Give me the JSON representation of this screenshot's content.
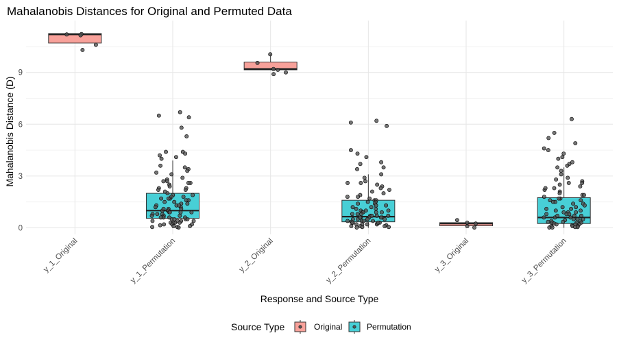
{
  "chart_data": {
    "type": "boxplot",
    "title": "Mahalanobis Distances for Original and Permuted Data",
    "xlabel": "Response and Source Type",
    "ylabel": "Mahalanobis Distance (D)",
    "ylim": [
      -0.5,
      11.8
    ],
    "yticks": [
      0,
      3,
      6,
      9
    ],
    "grid": true,
    "legend": {
      "title": "Source Type",
      "placement": "bottom",
      "entries": [
        {
          "label": "Original",
          "color": "#f8a19a"
        },
        {
          "label": "Permutation",
          "color": "#48cfd6"
        }
      ]
    },
    "categories": [
      {
        "label": "y_1_Original",
        "source": "Original",
        "box": {
          "q1": 10.7,
          "median": 11.2,
          "q3": 11.25,
          "whisker_low": 10.7,
          "whisker_high": 11.25
        },
        "points": [
          11.22,
          11.2,
          11.15,
          10.6,
          10.3
        ]
      },
      {
        "label": "y_1_Permutation",
        "source": "Permutation",
        "box": {
          "q1": 0.55,
          "median": 1.0,
          "q3": 2.0,
          "whisker_low": 0.0,
          "whisker_high": 3.9
        },
        "points": [
          6.7,
          6.5,
          6.4,
          5.8,
          5.3,
          4.4,
          4.4,
          4.3,
          4.2,
          4.1,
          4.0,
          3.6,
          3.5,
          3.4,
          3.3,
          3.2,
          3.1,
          2.9,
          2.8,
          2.7,
          2.7,
          2.6,
          2.6,
          2.5,
          2.4,
          2.3,
          2.3,
          2.2,
          2.1,
          2.0,
          1.9,
          1.9,
          1.8,
          1.8,
          1.7,
          1.7,
          1.6,
          1.6,
          1.5,
          1.5,
          1.4,
          1.4,
          1.3,
          1.3,
          1.2,
          1.2,
          1.1,
          1.1,
          1.0,
          1.0,
          1.0,
          0.9,
          0.9,
          0.9,
          0.8,
          0.8,
          0.8,
          0.7,
          0.7,
          0.7,
          0.6,
          0.6,
          0.6,
          0.5,
          0.5,
          0.5,
          0.5,
          0.4,
          0.4,
          0.4,
          0.3,
          0.3,
          0.3,
          0.3,
          0.2,
          0.2,
          0.2,
          0.15,
          0.1,
          0.1,
          0.05,
          0.05,
          0.02,
          1.3,
          1.7,
          2.2,
          0.9,
          1.1,
          0.6,
          0.4
        ]
      },
      {
        "label": "y_2_Original",
        "source": "Original",
        "box": {
          "q1": 9.15,
          "median": 9.2,
          "q3": 9.6,
          "whisker_low": 9.15,
          "whisker_high": 10.05
        },
        "points": [
          10.05,
          9.55,
          9.2,
          9.15,
          9.0,
          8.9
        ]
      },
      {
        "label": "y_2_Permutation",
        "source": "Permutation",
        "box": {
          "q1": 0.35,
          "median": 0.65,
          "q3": 1.6,
          "whisker_low": 0.0,
          "whisker_high": 3.1
        },
        "points": [
          6.2,
          6.1,
          5.9,
          4.5,
          4.3,
          4.1,
          3.8,
          3.7,
          3.5,
          3.4,
          3.1,
          2.9,
          2.7,
          2.6,
          2.6,
          2.5,
          2.4,
          2.3,
          2.2,
          2.1,
          2.0,
          1.9,
          1.8,
          1.8,
          1.7,
          1.6,
          1.6,
          1.5,
          1.5,
          1.4,
          1.3,
          1.3,
          1.2,
          1.2,
          1.1,
          1.1,
          1.0,
          1.0,
          0.9,
          0.9,
          0.9,
          0.8,
          0.8,
          0.8,
          0.7,
          0.7,
          0.7,
          0.6,
          0.6,
          0.6,
          0.6,
          0.5,
          0.5,
          0.5,
          0.5,
          0.4,
          0.4,
          0.4,
          0.4,
          0.35,
          0.3,
          0.3,
          0.3,
          0.3,
          0.25,
          0.2,
          0.2,
          0.2,
          0.2,
          0.15,
          0.1,
          0.1,
          0.1,
          0.05,
          0.05,
          0.02,
          0.5,
          0.7,
          1.0,
          1.4,
          0.3,
          0.6,
          0.9
        ]
      },
      {
        "label": "y_3_Original",
        "source": "Original",
        "box": {
          "q1": 0.12,
          "median": 0.25,
          "q3": 0.3,
          "whisker_low": 0.12,
          "whisker_high": 0.3
        },
        "points": [
          0.45,
          0.3,
          0.25,
          0.1,
          0.02
        ]
      },
      {
        "label": "y_3_Permutation",
        "source": "Permutation",
        "box": {
          "q1": 0.25,
          "median": 0.6,
          "q3": 1.75,
          "whisker_low": 0.0,
          "whisker_high": 3.5
        },
        "points": [
          6.3,
          5.5,
          5.2,
          4.9,
          4.6,
          4.5,
          4.3,
          4.1,
          4.0,
          3.8,
          3.7,
          3.6,
          3.5,
          3.3,
          3.1,
          2.9,
          2.8,
          2.7,
          2.6,
          2.6,
          2.5,
          2.4,
          2.3,
          2.2,
          2.1,
          2.0,
          1.9,
          1.9,
          1.8,
          1.7,
          1.7,
          1.6,
          1.6,
          1.5,
          1.4,
          1.4,
          1.3,
          1.2,
          1.2,
          1.1,
          1.0,
          1.0,
          0.9,
          0.9,
          0.8,
          0.8,
          0.8,
          0.7,
          0.7,
          0.6,
          0.6,
          0.6,
          0.5,
          0.5,
          0.5,
          0.45,
          0.4,
          0.4,
          0.35,
          0.3,
          0.3,
          0.3,
          0.25,
          0.2,
          0.2,
          0.2,
          0.15,
          0.1,
          0.1,
          0.1,
          0.05,
          0.05,
          0.02,
          0.02,
          1.1,
          1.5,
          0.7,
          0.35,
          0.9,
          2.3
        ]
      }
    ]
  }
}
